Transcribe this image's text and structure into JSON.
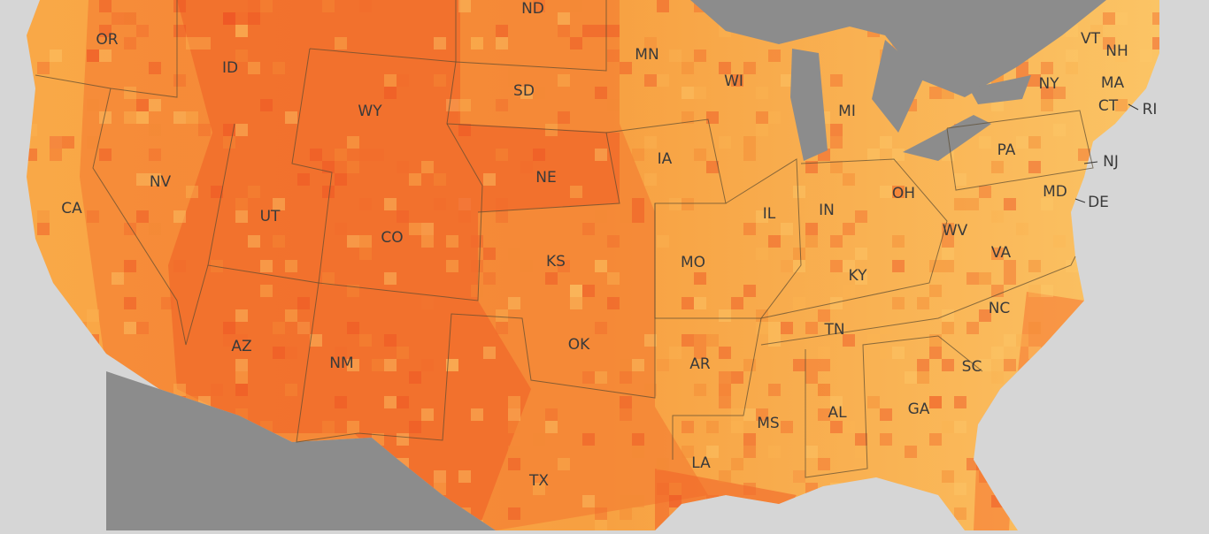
{
  "states": [
    "OR",
    "ID",
    "WY",
    "ND",
    "SD",
    "MN",
    "WI",
    "MI",
    "NY",
    "VT",
    "NH",
    "MA",
    "CT",
    "RI",
    "PA",
    "NJ",
    "DE",
    "MD",
    "NE",
    "IA",
    "IL",
    "IN",
    "OH",
    "WV",
    "VA",
    "NV",
    "CA",
    "UT",
    "CO",
    "KS",
    "MO",
    "KY",
    "TN",
    "NC",
    "SC",
    "GA",
    "AL",
    "MS",
    "AR",
    "OK",
    "TX",
    "LA",
    "NM",
    "AZ"
  ]
}
